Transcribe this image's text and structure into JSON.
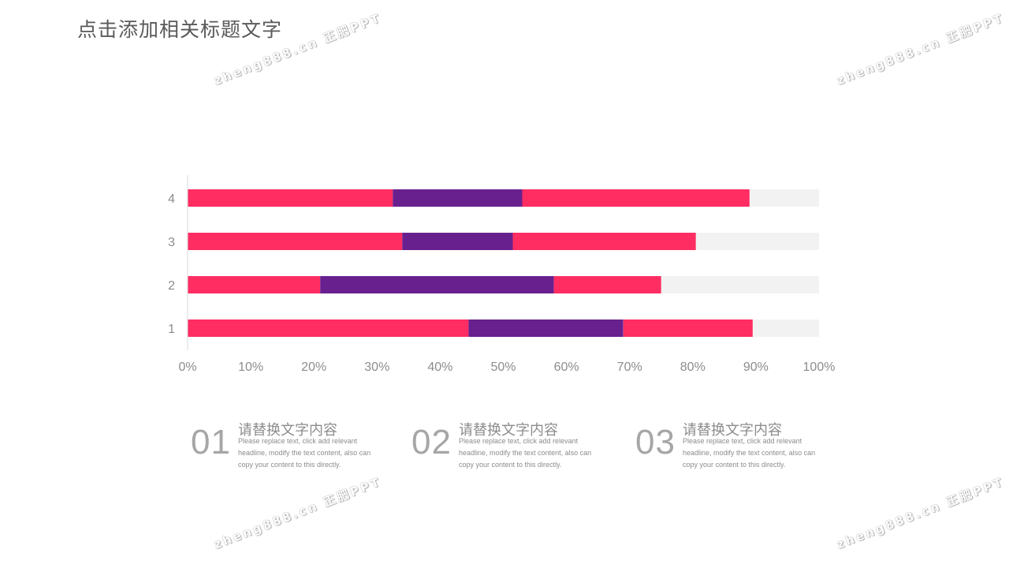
{
  "page": {
    "title": "点击添加相关标题文字"
  },
  "watermarks": [
    "zheng888.cn 正肥PPT",
    "zheng888.cn 正肥PPT",
    "zheng888.cn 正肥PPT",
    "zheng888.cn 正肥PPT"
  ],
  "chart_data": {
    "type": "bar",
    "orientation": "horizontal",
    "stacked": true,
    "categories": [
      "1",
      "2",
      "3",
      "4"
    ],
    "series": [
      {
        "color": "#ff2d62",
        "values": [
          44.5,
          21.0,
          34.0,
          32.5
        ]
      },
      {
        "color": "#68208f",
        "values": [
          24.5,
          37.0,
          17.5,
          20.5
        ]
      },
      {
        "color": "#ff2d62",
        "values": [
          20.5,
          17.0,
          29.0,
          36.0
        ]
      },
      {
        "color": "#f2f2f2",
        "values": [
          10.5,
          25.0,
          19.5,
          11.0
        ]
      }
    ],
    "xlim": [
      0,
      100
    ],
    "xticks": [
      "0%",
      "10%",
      "20%",
      "30%",
      "40%",
      "50%",
      "60%",
      "70%",
      "80%",
      "90%",
      "100%"
    ],
    "title": "",
    "xlabel": "",
    "ylabel": "",
    "grid": false,
    "legend": "none"
  },
  "items": [
    {
      "number": "01",
      "heading": "请替换文字内容",
      "body": "Please replace text, click add relevant headline, modify the text content, also can copy your content to this directly."
    },
    {
      "number": "02",
      "heading": "请替换文字内容",
      "body": "Please replace text, click add relevant headline, modify the text content, also can copy your content to this directly."
    },
    {
      "number": "03",
      "heading": "请替换文字内容",
      "body": "Please replace text, click add relevant headline, modify the text content, also can copy your content to this directly."
    }
  ]
}
